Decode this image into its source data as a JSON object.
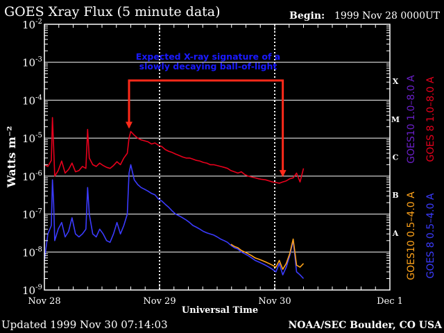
{
  "header": {
    "title": "GOES Xray Flux (5 minute data)",
    "begin_label": "Begin:",
    "begin_value": "1999 Nov 28 0000UT"
  },
  "footer": {
    "updated": "Updated 1999 Nov 30 07:14:03",
    "credit": "NOAA/SEC Boulder, CO USA"
  },
  "chart_data": {
    "type": "line",
    "title": "GOES Xray Flux (5 minute data)",
    "xlabel": "Universal Time",
    "ylabel": "Watts m⁻²",
    "y_scale": "log",
    "ylim": [
      1e-09,
      0.01
    ],
    "y_ticks": [
      {
        "base": "10",
        "exp": "-9",
        "value": 1e-09
      },
      {
        "base": "10",
        "exp": "-8",
        "value": 1e-08
      },
      {
        "base": "10",
        "exp": "-7",
        "value": 1e-07
      },
      {
        "base": "10",
        "exp": "-6",
        "value": 1e-06
      },
      {
        "base": "10",
        "exp": "-5",
        "value": 1e-05
      },
      {
        "base": "10",
        "exp": "-4",
        "value": 0.0001
      },
      {
        "base": "10",
        "exp": "-3",
        "value": 0.001
      },
      {
        "base": "10",
        "exp": "-2",
        "value": 0.01
      }
    ],
    "xlim": [
      0,
      3
    ],
    "x_ticks": [
      {
        "label": "Nov 28",
        "day": 0
      },
      {
        "label": "Nov 29",
        "day": 1
      },
      {
        "label": "Nov 30",
        "day": 2
      },
      {
        "label": "Dec 1",
        "day": 3
      }
    ],
    "grid": true,
    "flare_classes": [
      {
        "label": "X",
        "value": 0.0001
      },
      {
        "label": "M",
        "value": 1e-05
      },
      {
        "label": "C",
        "value": 1e-06
      },
      {
        "label": "B",
        "value": 1e-07
      },
      {
        "label": "A",
        "value": 1e-08
      }
    ],
    "legend_right": [
      {
        "text": "GOES 8 1.0–8.0 A",
        "color": "#e8001c"
      },
      {
        "text": "GOES10 1.0–8.0 A",
        "color": "#6a1fc8"
      }
    ],
    "legend_bottom": [
      {
        "text": "GOES 8 0.5–4.0 A",
        "color": "#3b3bff"
      },
      {
        "text": "GOES10 0.5–4.0 A",
        "color": "#ffa31a"
      }
    ],
    "annotation": {
      "lines": [
        "Expected X-ray signature of a",
        "slowly decaying ball-of-light"
      ],
      "color": "#1a1aff",
      "arrow_color": "#ff2a1a",
      "arrow_from_day": 0.735,
      "arrow_to_day": 2.07,
      "bracket_level": 0.00033,
      "left_target": 1.5e-05,
      "right_target": 8e-07
    },
    "series": [
      {
        "name": "GOES 8 1.0-8.0 A",
        "color": "#e8001c",
        "x": [
          0.0,
          0.03,
          0.06,
          0.07,
          0.08,
          0.09,
          0.12,
          0.15,
          0.18,
          0.21,
          0.24,
          0.27,
          0.3,
          0.33,
          0.36,
          0.375,
          0.39,
          0.42,
          0.45,
          0.48,
          0.51,
          0.54,
          0.57,
          0.6,
          0.63,
          0.66,
          0.69,
          0.72,
          0.735,
          0.75,
          0.78,
          0.81,
          0.84,
          0.87,
          0.9,
          0.93,
          0.96,
          0.99,
          1.02,
          1.05,
          1.08,
          1.11,
          1.14,
          1.17,
          1.2,
          1.23,
          1.26,
          1.29,
          1.32,
          1.35,
          1.38,
          1.41,
          1.44,
          1.47,
          1.5,
          1.53,
          1.56,
          1.59,
          1.62,
          1.65,
          1.68,
          1.71,
          1.74,
          1.77,
          1.8,
          1.83,
          1.86,
          1.89,
          1.92,
          1.95,
          1.98,
          2.01,
          2.04,
          2.07,
          2.1,
          2.13,
          2.16,
          2.19,
          2.22,
          2.25
        ],
        "y": [
          2e-06,
          1.8e-06,
          2.6e-06,
          3.5e-05,
          6e-06,
          1e-06,
          1.4e-06,
          2.5e-06,
          1.2e-06,
          1.5e-06,
          2.2e-06,
          1.3e-06,
          1.4e-06,
          1.8e-06,
          1.6e-06,
          1.7e-05,
          3e-06,
          2e-06,
          1.8e-06,
          2.2e-06,
          1.9e-06,
          1.7e-06,
          1.6e-06,
          1.9e-06,
          2.4e-06,
          2e-06,
          3e-06,
          4e-06,
          1e-05,
          1.5e-05,
          1.2e-05,
          1e-05,
          9e-06,
          8.5e-06,
          8e-06,
          7e-06,
          7.5e-06,
          6.5e-06,
          6e-06,
          5e-06,
          4.5e-06,
          4.2e-06,
          3.8e-06,
          3.5e-06,
          3.2e-06,
          3e-06,
          3e-06,
          2.8e-06,
          2.6e-06,
          2.5e-06,
          2.3e-06,
          2.2e-06,
          2e-06,
          2e-06,
          1.9e-06,
          1.8e-06,
          1.7e-06,
          1.6e-06,
          1.4e-06,
          1.3e-06,
          1.2e-06,
          1.3e-06,
          1.1e-06,
          1e-06,
          9.5e-07,
          9e-07,
          8.5e-07,
          8.2e-07,
          8e-07,
          7.5e-07,
          7e-07,
          6.8e-07,
          6.5e-07,
          7e-07,
          7.5e-07,
          8.5e-07,
          9e-07,
          1.2e-06,
          7e-07,
          1.6e-06
        ]
      },
      {
        "name": "GOES 8 0.5-4.0 A",
        "color": "#3b3bff",
        "x": [
          0.0,
          0.03,
          0.06,
          0.07,
          0.08,
          0.09,
          0.12,
          0.15,
          0.18,
          0.21,
          0.24,
          0.27,
          0.3,
          0.33,
          0.36,
          0.375,
          0.39,
          0.42,
          0.45,
          0.48,
          0.51,
          0.54,
          0.57,
          0.6,
          0.63,
          0.66,
          0.69,
          0.72,
          0.735,
          0.75,
          0.78,
          0.81,
          0.84,
          0.87,
          0.9,
          0.93,
          0.96,
          0.99,
          1.02,
          1.05,
          1.08,
          1.11,
          1.14,
          1.17,
          1.2,
          1.23,
          1.26,
          1.29,
          1.32,
          1.35,
          1.38,
          1.41,
          1.44,
          1.47,
          1.5,
          1.53,
          1.56,
          1.59,
          1.62,
          1.65,
          1.68,
          1.71,
          1.74,
          1.77,
          1.8,
          1.83,
          1.86,
          1.89,
          1.92,
          1.95,
          1.98,
          2.01,
          2.04,
          2.07,
          2.1,
          2.13,
          2.16,
          2.19,
          2.22,
          2.25
        ],
        "y": [
          6e-09,
          3e-08,
          5e-08,
          8e-07,
          2e-07,
          2e-08,
          4e-08,
          6e-08,
          2.5e-08,
          3.5e-08,
          8e-08,
          3e-08,
          2.5e-08,
          3e-08,
          4e-08,
          5e-07,
          1e-07,
          3e-08,
          2.5e-08,
          4e-08,
          3e-08,
          2e-08,
          1.8e-08,
          3e-08,
          6e-08,
          3e-08,
          5e-08,
          1e-07,
          1.2e-06,
          2e-06,
          8e-07,
          6e-07,
          5e-07,
          4.5e-07,
          4e-07,
          3.5e-07,
          3.2e-07,
          2.5e-07,
          2.2e-07,
          1.8e-07,
          1.5e-07,
          1.2e-07,
          1e-07,
          9e-08,
          8e-08,
          7e-08,
          6e-08,
          5e-08,
          4.5e-08,
          4e-08,
          3.5e-08,
          3.2e-08,
          3e-08,
          2.8e-08,
          2.5e-08,
          2.2e-08,
          2e-08,
          1.8e-08,
          1.5e-08,
          1.3e-08,
          1.2e-08,
          1e-08,
          9e-09,
          8e-09,
          7e-09,
          6e-09,
          5.5e-09,
          5e-09,
          4.5e-09,
          4e-09,
          3.5e-09,
          3e-09,
          5e-09,
          2.5e-09,
          4e-09,
          8e-09,
          2e-08,
          3e-09,
          2.5e-09,
          2e-09
        ]
      },
      {
        "name": "GOES10 0.5-4.0 A",
        "color": "#ffa31a",
        "x": [
          1.62,
          1.65,
          1.68,
          1.71,
          1.74,
          1.77,
          1.8,
          1.83,
          1.86,
          1.89,
          1.92,
          1.95,
          1.98,
          2.01,
          2.04,
          2.07,
          2.1,
          2.13,
          2.16,
          2.19,
          2.22,
          2.25
        ],
        "y": [
          1.6e-08,
          1.4e-08,
          1.3e-08,
          1.1e-08,
          1e-08,
          9e-09,
          8e-09,
          7e-09,
          6.5e-09,
          6e-09,
          5.5e-09,
          5e-09,
          4.5e-09,
          4e-09,
          6e-09,
          3.5e-09,
          5e-09,
          9e-09,
          2.2e-08,
          4.5e-09,
          4e-09,
          5e-09
        ]
      }
    ]
  }
}
